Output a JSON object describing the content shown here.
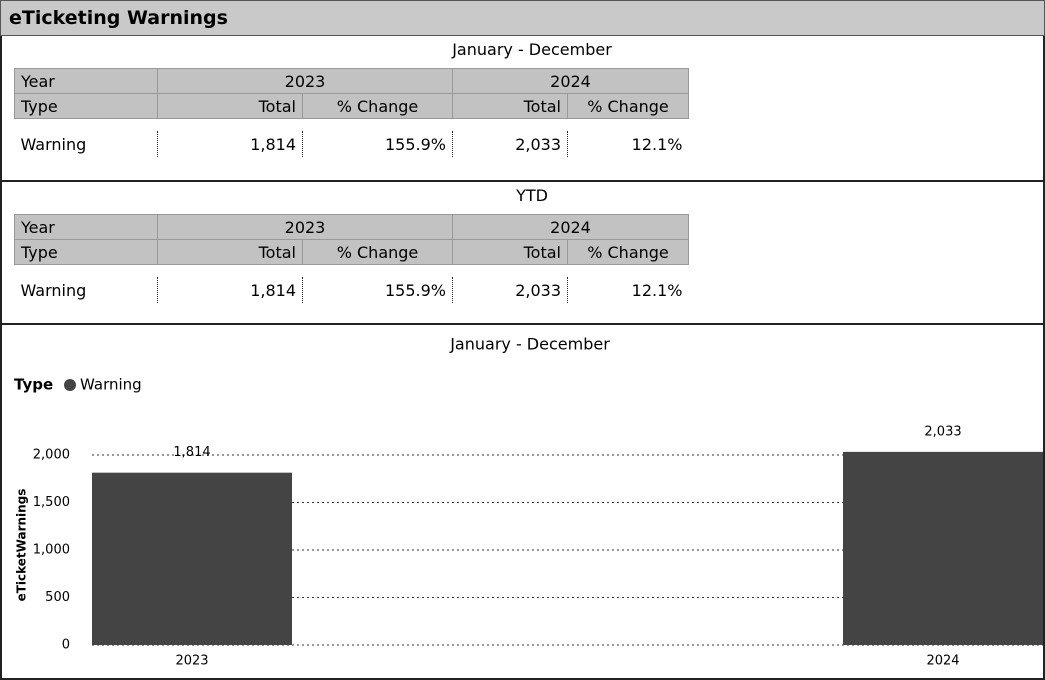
{
  "header": {
    "title": "eTicketing Warnings"
  },
  "tables": [
    {
      "heading": "January - December",
      "year_label": "Year",
      "type_label": "Type",
      "years": [
        "2023",
        "2024"
      ],
      "columns": [
        "Total",
        "% Change",
        "Total",
        "% Change"
      ],
      "rows": [
        [
          "Warning",
          "1,814",
          "155.9%",
          "2,033",
          "12.1%"
        ]
      ]
    },
    {
      "heading": "YTD",
      "year_label": "Year",
      "type_label": "Type",
      "years": [
        "2023",
        "2024"
      ],
      "columns": [
        "Total",
        "% Change",
        "Total",
        "% Change"
      ],
      "rows": [
        [
          "Warning",
          "1,814",
          "155.9%",
          "2,033",
          "12.1%"
        ]
      ]
    }
  ],
  "chart_data": {
    "type": "bar",
    "title": "January - December",
    "legend_title": "Type",
    "y_label": "eTicketWarnings",
    "categories": [
      "2023",
      "2024"
    ],
    "series": [
      {
        "name": "Warning",
        "color": "#444444",
        "values": [
          1814,
          2033
        ],
        "value_labels": [
          "1,814",
          "2,033"
        ]
      }
    ],
    "ylim": [
      0,
      2200
    ],
    "yticks": [
      0,
      500,
      {
        "value": 1000,
        "label": "1,000"
      },
      {
        "value": 1500,
        "label": "1,500"
      },
      {
        "value": 2000,
        "label": "2,000"
      }
    ],
    "grid": true
  }
}
